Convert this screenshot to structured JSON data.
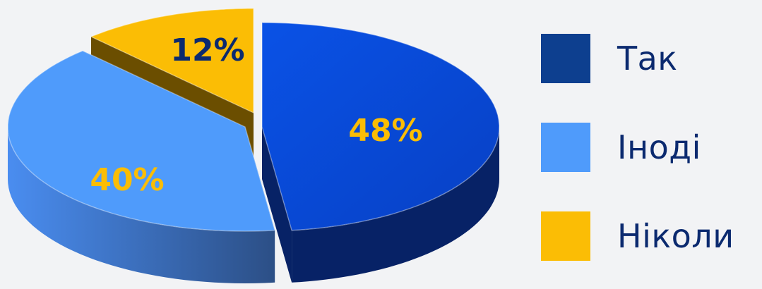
{
  "chart_data": {
    "type": "pie",
    "style": "3d-exploded",
    "slices": [
      {
        "label": "Так",
        "value": 48,
        "data_label": "48%",
        "color": "#0a4ddb",
        "side_color": "#072266"
      },
      {
        "label": "Іноді",
        "value": 40,
        "data_label": "40%",
        "color": "#4f9bfb",
        "side_color": "#2f63ab"
      },
      {
        "label": "Ніколи",
        "value": 12,
        "data_label": "12%",
        "color": "#fbbd05",
        "side_color": "#6b4e00"
      }
    ],
    "label_colors": {
      "48%": "#fbbd05",
      "40%": "#fbbd05",
      "12%": "#0b2a6f"
    },
    "legend_position": "right",
    "legend_swatch_colors": [
      "#0d3f8f",
      "#4f9bfb",
      "#fbbd05"
    ]
  }
}
